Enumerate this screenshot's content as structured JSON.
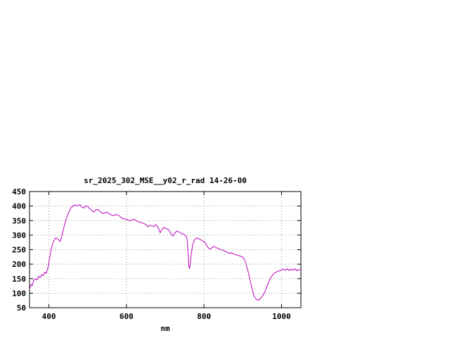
{
  "window": {
    "background": "#ffffff"
  },
  "chart_data": {
    "type": "line",
    "title": "sr_2025_302_MSE__y02_r_rad 14-26-00",
    "xlabel": "nm",
    "ylabel": "",
    "xlim": [
      350,
      1050
    ],
    "ylim": [
      50,
      450
    ],
    "x_ticks": [
      400,
      600,
      800,
      1000
    ],
    "y_ticks": [
      50,
      100,
      150,
      200,
      250,
      300,
      350,
      400,
      450
    ],
    "grid": true,
    "legend": "none",
    "line_color": "#bb00bb",
    "axis_color": "#000000",
    "grid_color": "#909090",
    "series": [
      {
        "name": "sr_2025_302_MSE__y02_r_rad",
        "x": [
          350,
          354,
          357,
          361,
          365,
          369,
          373,
          377,
          381,
          385,
          389,
          393,
          397,
          401,
          405,
          409,
          413,
          417,
          421,
          425,
          429,
          433,
          437,
          441,
          445,
          449,
          453,
          457,
          461,
          465,
          470,
          475,
          480,
          485,
          490,
          495,
          500,
          505,
          510,
          515,
          520,
          525,
          530,
          535,
          540,
          545,
          550,
          555,
          560,
          565,
          570,
          575,
          580,
          585,
          590,
          595,
          600,
          605,
          610,
          615,
          620,
          625,
          630,
          635,
          640,
          645,
          650,
          656,
          660,
          665,
          670,
          675,
          680,
          684,
          687,
          690,
          695,
          700,
          705,
          710,
          715,
          720,
          725,
          730,
          735,
          740,
          745,
          750,
          754,
          757,
          759,
          761,
          763,
          765,
          768,
          771,
          774,
          778,
          782,
          786,
          790,
          795,
          800,
          805,
          810,
          815,
          820,
          825,
          830,
          835,
          840,
          845,
          850,
          855,
          860,
          865,
          870,
          875,
          880,
          885,
          890,
          895,
          900,
          905,
          910,
          915,
          920,
          925,
          930,
          935,
          940,
          945,
          950,
          955,
          960,
          965,
          970,
          975,
          980,
          985,
          990,
          995,
          1000,
          1005,
          1010,
          1015,
          1020,
          1025,
          1030,
          1035,
          1040,
          1045,
          1050
        ],
        "y": [
          115,
          130,
          126,
          145,
          150,
          146,
          158,
          154,
          164,
          160,
          172,
          168,
          185,
          215,
          245,
          268,
          280,
          290,
          288,
          283,
          278,
          295,
          318,
          340,
          358,
          372,
          385,
          394,
          399,
          402,
          404,
          400,
          405,
          397,
          393,
          401,
          398,
          391,
          386,
          379,
          386,
          389,
          383,
          378,
          374,
          377,
          379,
          373,
          370,
          367,
          369,
          371,
          368,
          362,
          357,
          356,
          354,
          351,
          349,
          353,
          355,
          350,
          346,
          344,
          342,
          340,
          336,
          328,
          334,
          332,
          329,
          336,
          330,
          318,
          308,
          316,
          326,
          324,
          321,
          317,
          304,
          297,
          307,
          314,
          311,
          307,
          304,
          301,
          296,
          280,
          240,
          190,
          185,
          205,
          245,
          268,
          280,
          287,
          290,
          288,
          285,
          281,
          278,
          269,
          258,
          252,
          256,
          261,
          258,
          255,
          252,
          249,
          247,
          244,
          241,
          237,
          239,
          236,
          234,
          231,
          229,
          227,
          224,
          214,
          193,
          168,
          138,
          108,
          88,
          79,
          76,
          81,
          89,
          99,
          114,
          133,
          149,
          159,
          167,
          172,
          175,
          177,
          180,
          183,
          179,
          184,
          178,
          183,
          179,
          184,
          177,
          182,
          179
        ]
      }
    ]
  }
}
